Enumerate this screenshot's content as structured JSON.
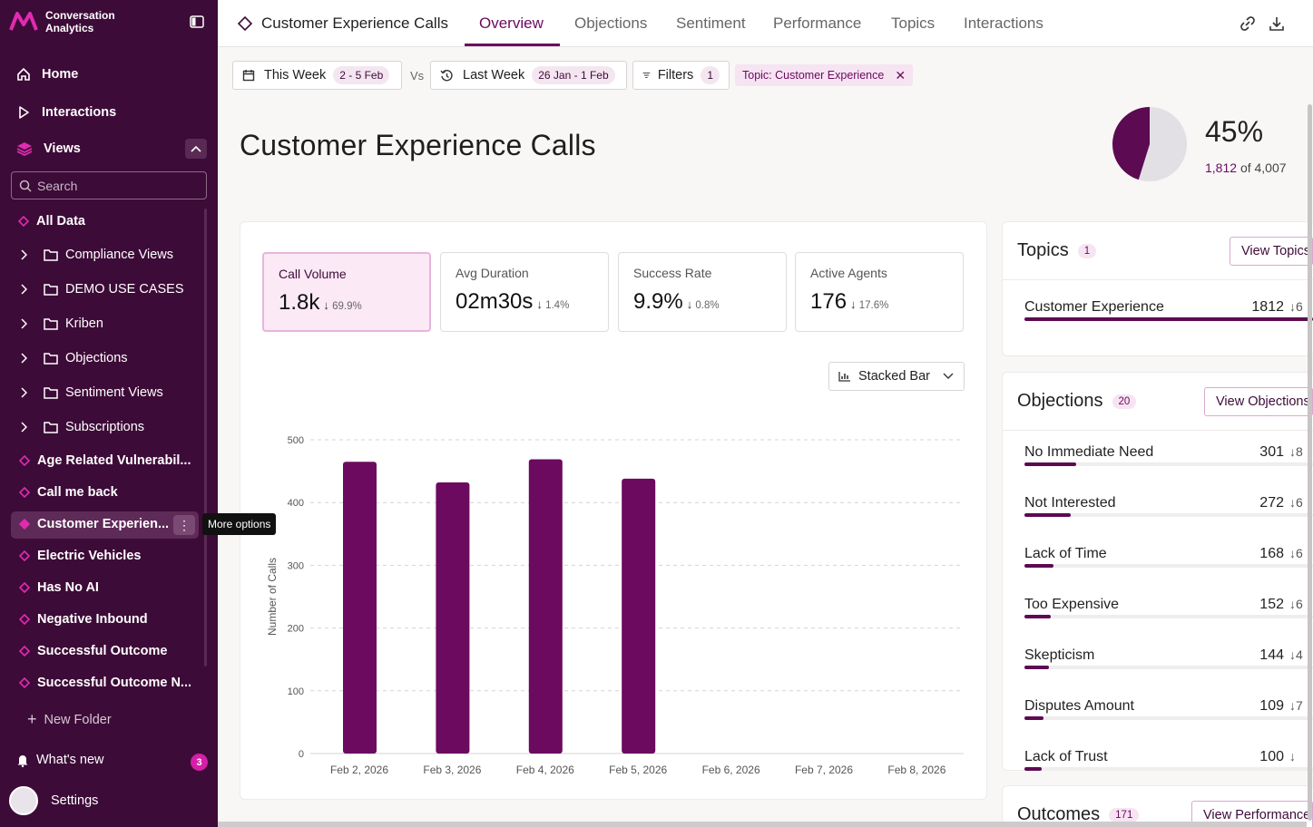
{
  "app": {
    "name_line1": "Conversation",
    "name_line2": "Analytics"
  },
  "nav": {
    "home": "Home",
    "interactions": "Interactions",
    "views": "Views"
  },
  "sidebar": {
    "search_placeholder": "Search",
    "all_data": "All Data",
    "folders": [
      "Compliance Views",
      "DEMO USE CASES",
      "Kriben",
      "Objections",
      "Sentiment Views",
      "Subscriptions"
    ],
    "views": [
      "Age Related Vulnerabil...",
      "Call me back",
      "Customer Experien...",
      "Electric Vehicles",
      "Has No AI",
      "Negative Inbound",
      "Successful Outcome",
      "Successful Outcome N..."
    ],
    "more_tooltip": "More options",
    "new_folder": "New Folder",
    "whats_new": "What's new",
    "whats_new_count": "3",
    "settings": "Settings"
  },
  "topbar": {
    "page": "Customer Experience Calls",
    "tabs": [
      "Overview",
      "Objections",
      "Sentiment",
      "Performance",
      "Topics",
      "Interactions"
    ]
  },
  "filters": {
    "this_week": "This Week",
    "this_week_range": "2 - 5 Feb",
    "vs": "Vs",
    "last_week": "Last Week",
    "last_week_range": "26 Jan - 1 Feb",
    "filters_label": "Filters",
    "filters_count": "1",
    "topic_chip": "Topic: Customer Experience"
  },
  "header": {
    "title": "Customer Experience Calls",
    "percent": "45%",
    "part": "1,812",
    "of_text": "of 4,007",
    "share": 0.452
  },
  "kpis": [
    {
      "label": "Call Volume",
      "value": "1.8k",
      "delta": "69.9%"
    },
    {
      "label": "Avg Duration",
      "value": "02m30s",
      "delta": "1.4%"
    },
    {
      "label": "Success Rate",
      "value": "9.9%",
      "delta": "0.8%"
    },
    {
      "label": "Active Agents",
      "value": "176",
      "delta": "17.6%"
    }
  ],
  "chart_type_label": "Stacked Bar",
  "chart_data": {
    "type": "bar",
    "categories": [
      "Feb 2, 2026",
      "Feb 3, 2026",
      "Feb 4, 2026",
      "Feb 5, 2026",
      "Feb 6, 2026",
      "Feb 7, 2026",
      "Feb 8, 2026"
    ],
    "values": [
      465,
      432,
      469,
      438,
      0,
      0,
      0
    ],
    "ylabel": "Number of Calls",
    "yticks": [
      0,
      100,
      200,
      300,
      400,
      500
    ],
    "ylim": [
      0,
      500
    ],
    "color": "#6b0a5f"
  },
  "topics": {
    "title": "Topics",
    "count": "1",
    "button": "View Topics",
    "items": [
      {
        "label": "Customer Experience",
        "count": "1812",
        "delta": "↓6",
        "share": 1.0
      }
    ]
  },
  "objections": {
    "title": "Objections",
    "count": "20",
    "button": "View Objections",
    "items": [
      {
        "label": "No Immediate Need",
        "count": "301",
        "delta": "↓8",
        "share": 0.18
      },
      {
        "label": "Not Interested",
        "count": "272",
        "delta": "↓6",
        "share": 0.16
      },
      {
        "label": "Lack of Time",
        "count": "168",
        "delta": "↓6",
        "share": 0.1
      },
      {
        "label": "Too Expensive",
        "count": "152",
        "delta": "↓6",
        "share": 0.09
      },
      {
        "label": "Skepticism",
        "count": "144",
        "delta": "↓4",
        "share": 0.085
      },
      {
        "label": "Disputes Amount",
        "count": "109",
        "delta": "↓7",
        "share": 0.065
      },
      {
        "label": "Lack of Trust",
        "count": "100",
        "delta": "↓",
        "share": 0.06
      }
    ]
  },
  "outcomes": {
    "title": "Outcomes",
    "count": "171",
    "button": "View Performance"
  }
}
